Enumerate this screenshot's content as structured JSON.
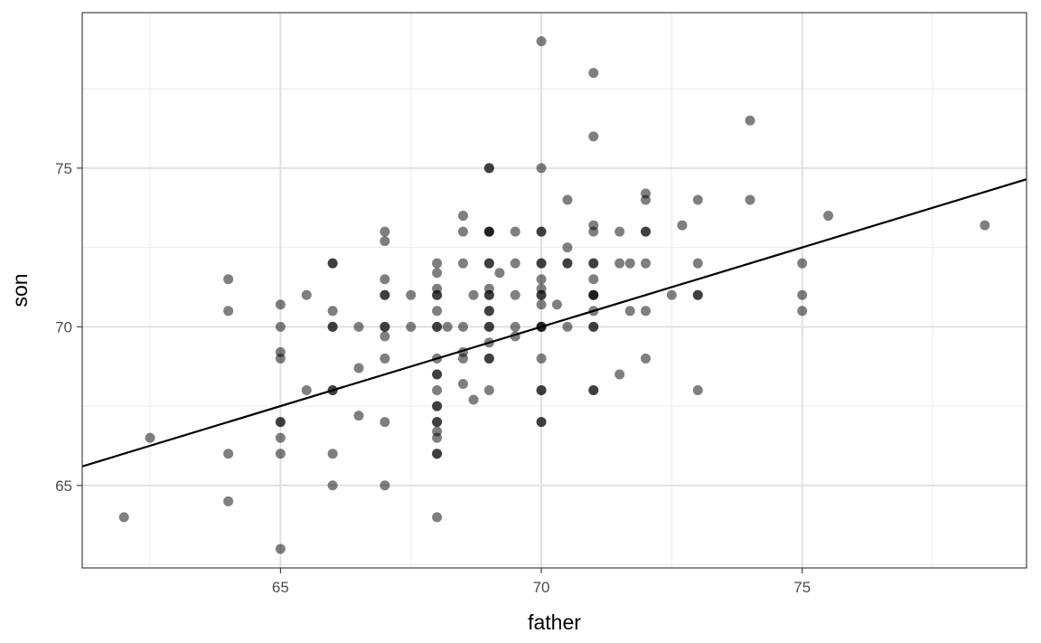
{
  "chart_data": {
    "type": "scatter",
    "xlabel": "father",
    "ylabel": "son",
    "xlim": [
      61.2,
      79.3
    ],
    "ylim": [
      62.4,
      79.9
    ],
    "x_ticks": [
      65,
      70,
      75
    ],
    "y_ticks": [
      65,
      70,
      75
    ],
    "x_minor_ticks": [
      62.5,
      67.5,
      72.5,
      77.5
    ],
    "y_minor_ticks": [
      62.5,
      67.5,
      72.5,
      77.5
    ],
    "grid": true,
    "point_color": "#000000",
    "point_opacity": 0.5,
    "regression_line": {
      "intercept": 35.0,
      "slope": 0.5,
      "color": "#000000"
    },
    "points": [
      [
        62,
        64
      ],
      [
        62.5,
        66.5
      ],
      [
        64,
        71.5
      ],
      [
        64,
        70.5
      ],
      [
        64,
        66
      ],
      [
        64,
        64.5
      ],
      [
        65,
        70.7
      ],
      [
        65,
        70
      ],
      [
        65,
        69.2
      ],
      [
        65,
        69
      ],
      [
        65,
        67
      ],
      [
        65,
        67
      ],
      [
        65,
        66.5
      ],
      [
        65,
        66
      ],
      [
        65,
        63
      ],
      [
        65.5,
        71
      ],
      [
        65.5,
        68
      ],
      [
        66,
        72
      ],
      [
        66,
        72
      ],
      [
        66,
        70.5
      ],
      [
        66,
        70
      ],
      [
        66,
        70
      ],
      [
        66,
        68
      ],
      [
        66,
        68
      ],
      [
        66,
        66
      ],
      [
        66,
        65
      ],
      [
        66.5,
        70
      ],
      [
        66.5,
        68.7
      ],
      [
        66.5,
        67.2
      ],
      [
        67,
        73
      ],
      [
        67,
        72.7
      ],
      [
        67,
        71.5
      ],
      [
        67,
        71
      ],
      [
        67,
        71
      ],
      [
        67,
        70
      ],
      [
        67,
        70
      ],
      [
        67,
        69.7
      ],
      [
        67,
        69
      ],
      [
        67,
        67
      ],
      [
        67,
        65
      ],
      [
        67.5,
        71
      ],
      [
        67.5,
        70
      ],
      [
        68,
        72
      ],
      [
        68,
        71.7
      ],
      [
        68,
        71.2
      ],
      [
        68,
        71
      ],
      [
        68,
        71
      ],
      [
        68,
        70.5
      ],
      [
        68,
        70
      ],
      [
        68,
        70
      ],
      [
        68,
        69
      ],
      [
        68,
        68.5
      ],
      [
        68,
        68.5
      ],
      [
        68,
        68
      ],
      [
        68,
        67.5
      ],
      [
        68,
        67.5
      ],
      [
        68,
        67
      ],
      [
        68,
        67
      ],
      [
        68,
        66.7
      ],
      [
        68,
        66.5
      ],
      [
        68,
        66
      ],
      [
        68,
        66
      ],
      [
        68,
        64
      ],
      [
        68.2,
        70
      ],
      [
        68.5,
        73.5
      ],
      [
        68.5,
        73
      ],
      [
        68.5,
        72
      ],
      [
        68.5,
        70
      ],
      [
        68.5,
        69.2
      ],
      [
        68.5,
        69
      ],
      [
        68.5,
        68.2
      ],
      [
        68.7,
        71
      ],
      [
        68.7,
        67.7
      ],
      [
        69,
        75
      ],
      [
        69,
        75
      ],
      [
        69,
        73
      ],
      [
        69,
        73
      ],
      [
        69,
        73
      ],
      [
        69,
        72
      ],
      [
        69,
        72
      ],
      [
        69,
        71.2
      ],
      [
        69,
        71
      ],
      [
        69,
        71
      ],
      [
        69,
        70.5
      ],
      [
        69,
        70.5
      ],
      [
        69,
        70
      ],
      [
        69,
        70
      ],
      [
        69,
        69.5
      ],
      [
        69,
        69
      ],
      [
        69,
        69
      ],
      [
        69,
        68
      ],
      [
        69.2,
        71.7
      ],
      [
        69.5,
        73
      ],
      [
        69.5,
        72
      ],
      [
        69.5,
        71
      ],
      [
        69.5,
        70
      ],
      [
        69.5,
        69.7
      ],
      [
        70,
        79
      ],
      [
        70,
        75
      ],
      [
        70,
        73
      ],
      [
        70,
        73
      ],
      [
        70,
        72
      ],
      [
        70,
        72
      ],
      [
        70,
        71.5
      ],
      [
        70,
        71.2
      ],
      [
        70,
        71
      ],
      [
        70,
        71
      ],
      [
        70,
        70.7
      ],
      [
        70,
        70
      ],
      [
        70,
        70
      ],
      [
        70,
        70
      ],
      [
        70,
        69
      ],
      [
        70,
        68
      ],
      [
        70,
        68
      ],
      [
        70,
        67
      ],
      [
        70,
        67
      ],
      [
        70.3,
        70.7
      ],
      [
        70.5,
        74
      ],
      [
        70.5,
        72.5
      ],
      [
        70.5,
        72
      ],
      [
        70.5,
        72
      ],
      [
        70.5,
        70
      ],
      [
        71,
        78
      ],
      [
        71,
        76
      ],
      [
        71,
        73.2
      ],
      [
        71,
        73
      ],
      [
        71,
        72
      ],
      [
        71,
        72
      ],
      [
        71,
        71.5
      ],
      [
        71,
        71
      ],
      [
        71,
        71
      ],
      [
        71,
        71
      ],
      [
        71,
        70.5
      ],
      [
        71,
        70
      ],
      [
        71,
        70
      ],
      [
        71,
        68
      ],
      [
        71,
        68
      ],
      [
        71.5,
        73
      ],
      [
        71.5,
        72
      ],
      [
        71.5,
        68.5
      ],
      [
        71.7,
        72
      ],
      [
        71.7,
        70.5
      ],
      [
        72,
        74.2
      ],
      [
        72,
        74
      ],
      [
        72,
        73
      ],
      [
        72,
        73
      ],
      [
        72,
        72
      ],
      [
        72,
        70.5
      ],
      [
        72,
        69
      ],
      [
        72.5,
        71
      ],
      [
        72.7,
        73.2
      ],
      [
        73,
        74
      ],
      [
        73,
        72
      ],
      [
        73,
        71
      ],
      [
        73,
        71
      ],
      [
        73,
        68
      ],
      [
        74,
        76.5
      ],
      [
        74,
        74
      ],
      [
        75,
        72
      ],
      [
        75,
        71
      ],
      [
        75,
        70.5
      ],
      [
        75.5,
        73.5
      ],
      [
        78.5,
        73.2
      ]
    ]
  }
}
